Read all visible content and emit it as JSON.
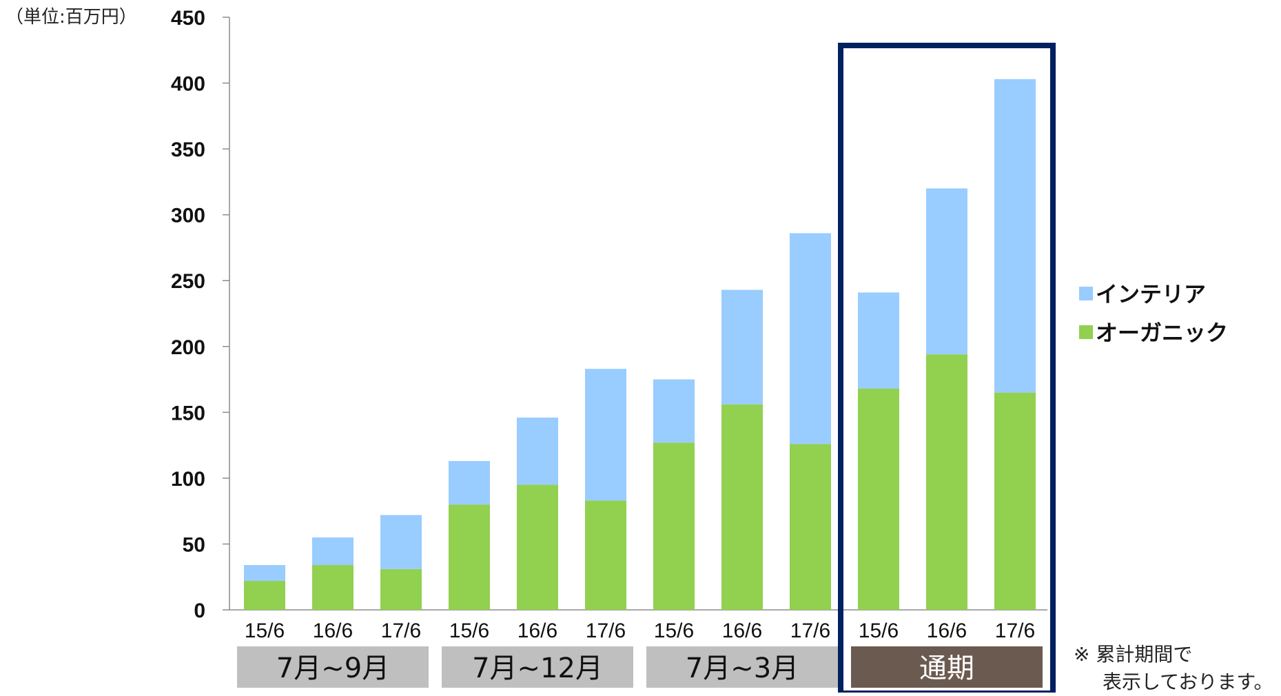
{
  "unit_label": "（単位:百万円）",
  "note": {
    "line1": "※ 累計期間で",
    "line2": "表示しております。"
  },
  "colors": {
    "organic": "#92d050",
    "interior": "#99ccff",
    "highlight_box": "#002060",
    "group_gray": "#bfbfbf",
    "group_highlight": "#6b5a50"
  },
  "chart_data": {
    "type": "bar",
    "stacked": true,
    "ylim": [
      0,
      450
    ],
    "yticks": [
      0,
      50,
      100,
      150,
      200,
      250,
      300,
      350,
      400,
      450
    ],
    "categories": [
      "15/6",
      "16/6",
      "17/6",
      "15/6",
      "16/6",
      "17/6",
      "15/6",
      "16/6",
      "17/6",
      "15/6",
      "16/6",
      "17/6"
    ],
    "groups": [
      {
        "label": "7月~9月",
        "highlight": false
      },
      {
        "label": "7月~12月",
        "highlight": false
      },
      {
        "label": "7月~3月",
        "highlight": false
      },
      {
        "label": "通期",
        "highlight": true
      }
    ],
    "series": [
      {
        "name": "オーガニック",
        "values": [
          22,
          34,
          31,
          80,
          95,
          83,
          127,
          156,
          126,
          168,
          194,
          165
        ]
      },
      {
        "name": "インテリア",
        "values": [
          12,
          21,
          41,
          33,
          51,
          100,
          48,
          87,
          160,
          73,
          126,
          238
        ]
      }
    ],
    "legend": [
      "インテリア",
      "オーガニック"
    ],
    "legend_position": "right",
    "grid": false
  }
}
